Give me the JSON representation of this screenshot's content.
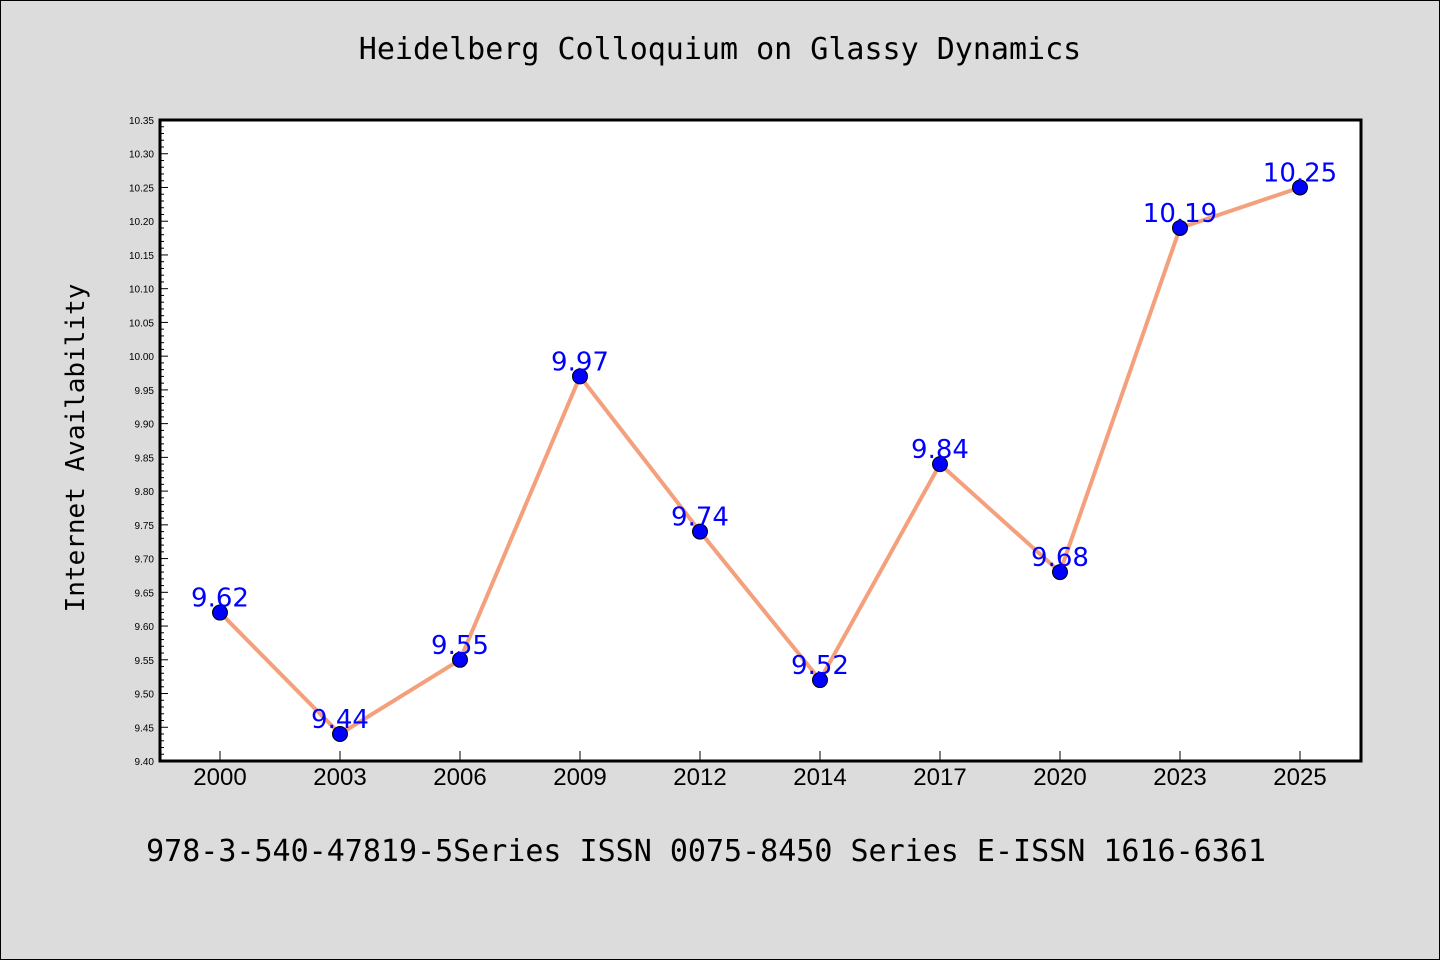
{
  "chart_data": {
    "type": "line",
    "title": "Heidelberg Colloquium on Glassy Dynamics",
    "xlabel": "",
    "ylabel": "Internet Availability",
    "categories": [
      "2000",
      "2003",
      "2006",
      "2009",
      "2012",
      "2014",
      "2017",
      "2020",
      "2023",
      "2025"
    ],
    "series": [
      {
        "values": [
          9.62,
          9.44,
          9.55,
          9.97,
          9.74,
          9.52,
          9.84,
          9.68,
          10.19,
          10.25
        ],
        "line_color": "#f4a07c",
        "marker_color": "#0000ff"
      }
    ],
    "data_labels": [
      "9.62",
      "9.44",
      "9.55",
      "9.97",
      "9.74",
      "9.52",
      "9.84",
      "9.68",
      "10.19",
      "10.25"
    ],
    "ylim": [
      9.4,
      10.35
    ],
    "yticks": [
      "9.40",
      "9.45",
      "9.50",
      "9.55",
      "9.60",
      "9.65",
      "9.70",
      "9.75",
      "9.80",
      "9.85",
      "9.90",
      "9.95",
      "10.00",
      "10.05",
      "10.10",
      "10.15",
      "10.20",
      "10.25",
      "10.30",
      "10.35"
    ],
    "grid": false,
    "legend": "none"
  },
  "footer": "978-3-540-47819-5Series ISSN 0075-8450 Series E-ISSN 1616-6361"
}
